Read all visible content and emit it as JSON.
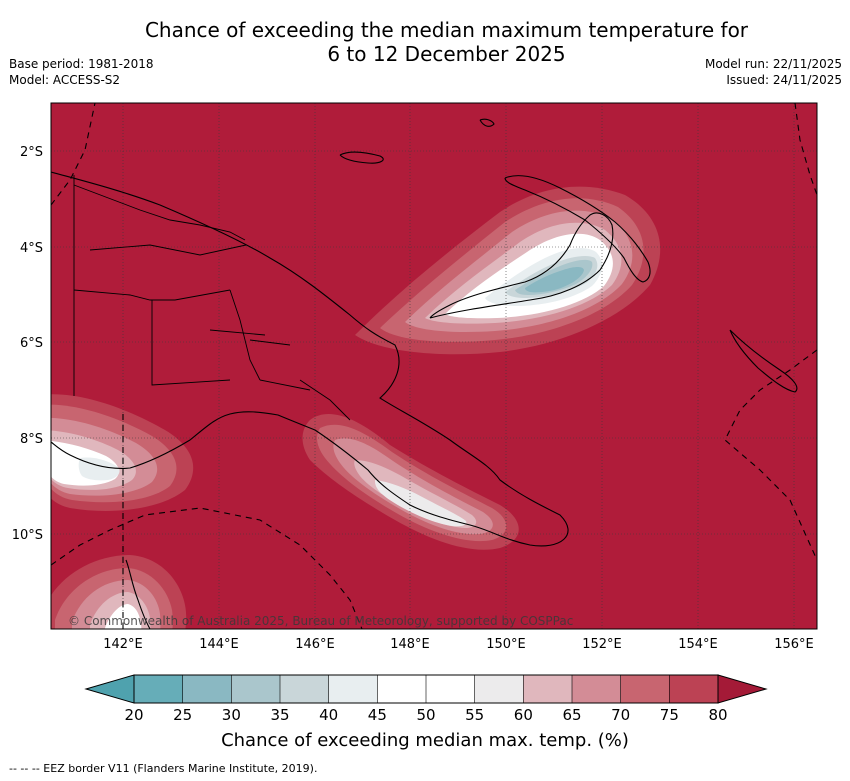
{
  "header": {
    "title_line1": "Chance of exceeding the median maximum temperature for",
    "title_line2": "6 to 12 December 2025",
    "base_period": "Base period: 1981-2018",
    "model": "Model: ACCESS-S2",
    "model_run": "Model run: 22/11/2025",
    "issued": "Issued: 24/11/2025"
  },
  "map": {
    "lat_labels": [
      "2°S",
      "4°S",
      "6°S",
      "8°S",
      "10°S"
    ],
    "lon_labels": [
      "142°E",
      "144°E",
      "146°E",
      "148°E",
      "150°E",
      "152°E",
      "154°E",
      "156°E"
    ],
    "copyright": "© Commonwealth of Australia 2025, Bureau of Meteorology, supported by COSPPac",
    "background_color": "#b01c3a"
  },
  "colorbar": {
    "ticks": [
      "20",
      "25",
      "30",
      "35",
      "40",
      "45",
      "50",
      "55",
      "60",
      "65",
      "70",
      "75",
      "80"
    ],
    "colors": [
      "#66adb8",
      "#8ab8c2",
      "#aac6cc",
      "#c9d6d9",
      "#e8eef0",
      "#ffffff",
      "#ffffff",
      "#ecebec",
      "#e0b7bd",
      "#d38c96",
      "#c86570",
      "#bc4254",
      "#b01c3a"
    ],
    "under_color": "#4fa2ae",
    "over_color": "#a41a37",
    "label": "Chance of exceeding median max. temp. (%)"
  },
  "footer": {
    "eez_note": "--  --  -- EEZ border V11 (Flanders Marine Institute, 2019)."
  }
}
